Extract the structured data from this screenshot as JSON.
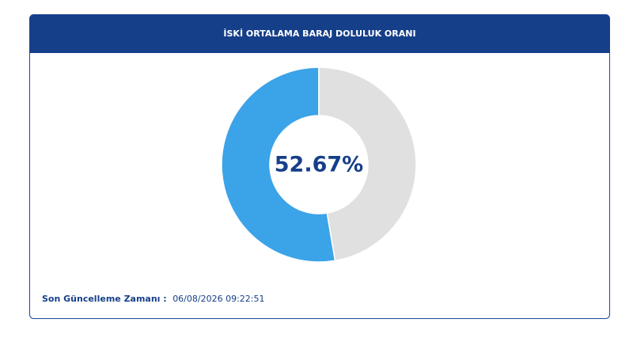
{
  "chart_data": {
    "type": "donut",
    "title": "İSKİ ORTALAMA BARAJ DOLULUK ORANI",
    "values": [
      52.67,
      47.33
    ],
    "value_labels": [
      "52.67%",
      null
    ],
    "colors": [
      "#3ba3e8",
      "#e0e0e0"
    ],
    "footer_label": "Son Güncelleme Zamanı :",
    "footer_value": "06/08/2026 09:22:51"
  }
}
